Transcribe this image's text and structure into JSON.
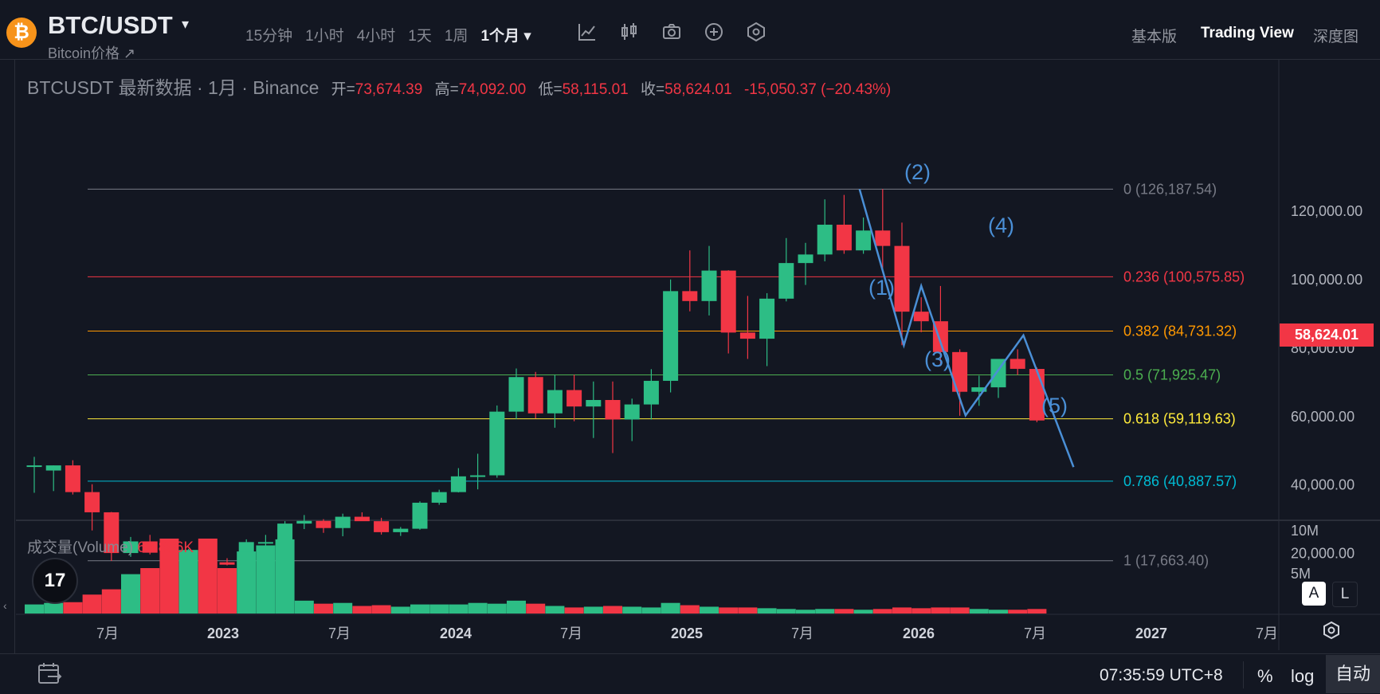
{
  "header": {
    "logo_glyph": "₿",
    "symbol": "BTC/USDT",
    "caret": "▾",
    "subname": "Bitcoin价格 ↗",
    "intervals": [
      "15分钟",
      "1小时",
      "4小时",
      "1天",
      "1周",
      "1个月 ▾"
    ],
    "active_interval_index": 5,
    "tools": [
      "indicator-chart-icon",
      "candles-icon",
      "camera-icon",
      "plus-circle-icon",
      "settings-hex-icon"
    ],
    "view_switch": [
      "基本版",
      "Trading View",
      "深度图"
    ],
    "active_view_index": 1
  },
  "legend": {
    "title": "BTCUSDT 最新数据 · 1月 · Binance",
    "open_k": "开=",
    "open_v": "73,674.39",
    "high_k": "高=",
    "high_v": "74,092.00",
    "low_k": "低=",
    "low_v": "58,115.01",
    "close_k": "收=",
    "close_v": "58,624.01",
    "change": "-15,050.37 (−20.43%)"
  },
  "volume_legend": {
    "label": "成交量(Volume)",
    "value": "63 886K"
  },
  "tv_logo": "17",
  "last_price_tag": "58,624.01",
  "scale_buttons": {
    "a": "A",
    "l": "L"
  },
  "bottom": {
    "clock": "07:35:59 UTC+8",
    "percent": "%",
    "log": "log",
    "auto": "自动",
    "date_range_icon": "calendar-range-icon"
  },
  "colors": {
    "up": "#26a69a",
    "up_fill": "#2dbd85",
    "down": "#f23645",
    "bg": "#131722",
    "wave": "#4a8fd6"
  },
  "chart_data": {
    "type": "candlestick",
    "interval": "1月",
    "price_axis_labels": [
      "120,000.00",
      "100,000.00",
      "80,000.00",
      "60,000.00",
      "40,000.00",
      "20,000.00"
    ],
    "price_axis_values": [
      120000,
      100000,
      80000,
      60000,
      40000,
      20000
    ],
    "volume_axis_labels": [
      "10M",
      "5M"
    ],
    "time_axis_labels": [
      "7月",
      "2023",
      "7月",
      "2024",
      "7月",
      "2025",
      "7月",
      "2026",
      "7月",
      "2027",
      "7月"
    ],
    "candles": [
      {
        "o": 45500,
        "h": 48000,
        "l": 37500,
        "c": 45500,
        "v": 1.2
      },
      {
        "o": 44000,
        "h": 45500,
        "l": 38000,
        "c": 45500,
        "v": 1.4
      },
      {
        "o": 45500,
        "h": 47000,
        "l": 37000,
        "c": 37700,
        "v": 1.5
      },
      {
        "o": 37700,
        "h": 40000,
        "l": 26500,
        "c": 31800,
        "v": 2.5
      },
      {
        "o": 31800,
        "h": 31900,
        "l": 17600,
        "c": 19900,
        "v": 3.2
      },
      {
        "o": 19900,
        "h": 24600,
        "l": 18800,
        "c": 23300,
        "v": 5.2
      },
      {
        "o": 23300,
        "h": 25200,
        "l": 19500,
        "c": 20000,
        "v": 6.0
      },
      {
        "o": 20000,
        "h": 22700,
        "l": 18200,
        "c": 19400,
        "v": 9.9
      },
      {
        "o": 19400,
        "h": 21100,
        "l": 18200,
        "c": 20500,
        "v": 8.4
      },
      {
        "o": 20500,
        "h": 21500,
        "l": 15500,
        "c": 17200,
        "v": 9.9
      },
      {
        "o": 17200,
        "h": 18400,
        "l": 16300,
        "c": 16500,
        "v": 6.0
      },
      {
        "o": 16500,
        "h": 23900,
        "l": 16500,
        "c": 23100,
        "v": 8.2
      },
      {
        "o": 23100,
        "h": 25200,
        "l": 21400,
        "c": 23100,
        "v": 9.0
      },
      {
        "o": 23100,
        "h": 29200,
        "l": 19500,
        "c": 28500,
        "v": 9.8
      },
      {
        "o": 28500,
        "h": 31000,
        "l": 26900,
        "c": 29300,
        "v": 1.7
      },
      {
        "o": 29300,
        "h": 29800,
        "l": 25800,
        "c": 27200,
        "v": 1.3
      },
      {
        "o": 27200,
        "h": 31400,
        "l": 24800,
        "c": 30500,
        "v": 1.4
      },
      {
        "o": 30500,
        "h": 31800,
        "l": 29500,
        "c": 29200,
        "v": 1.0
      },
      {
        "o": 29200,
        "h": 30200,
        "l": 25300,
        "c": 26000,
        "v": 1.1
      },
      {
        "o": 26000,
        "h": 27500,
        "l": 24900,
        "c": 27000,
        "v": 0.9
      },
      {
        "o": 27000,
        "h": 35000,
        "l": 26700,
        "c": 34600,
        "v": 1.2
      },
      {
        "o": 34600,
        "h": 38400,
        "l": 34000,
        "c": 37700,
        "v": 1.2
      },
      {
        "o": 37700,
        "h": 44700,
        "l": 37600,
        "c": 42300,
        "v": 1.2
      },
      {
        "o": 42300,
        "h": 48900,
        "l": 38500,
        "c": 42600,
        "v": 1.4
      },
      {
        "o": 42600,
        "h": 63000,
        "l": 41900,
        "c": 61200,
        "v": 1.3
      },
      {
        "o": 61200,
        "h": 73800,
        "l": 59000,
        "c": 71300,
        "v": 1.7
      },
      {
        "o": 71300,
        "h": 72800,
        "l": 59200,
        "c": 60700,
        "v": 1.3
      },
      {
        "o": 60700,
        "h": 71900,
        "l": 56500,
        "c": 67500,
        "v": 1.0
      },
      {
        "o": 67500,
        "h": 72000,
        "l": 58400,
        "c": 62700,
        "v": 0.8
      },
      {
        "o": 62700,
        "h": 70000,
        "l": 53500,
        "c": 64600,
        "v": 0.9
      },
      {
        "o": 64600,
        "h": 70000,
        "l": 49100,
        "c": 58900,
        "v": 1.0
      },
      {
        "o": 58900,
        "h": 65000,
        "l": 52600,
        "c": 63300,
        "v": 0.9
      },
      {
        "o": 63300,
        "h": 73600,
        "l": 58900,
        "c": 70200,
        "v": 0.8
      },
      {
        "o": 70200,
        "h": 99800,
        "l": 66800,
        "c": 96400,
        "v": 1.4
      },
      {
        "o": 96400,
        "h": 108300,
        "l": 90500,
        "c": 93500,
        "v": 1.1
      },
      {
        "o": 93500,
        "h": 109600,
        "l": 89300,
        "c": 102400,
        "v": 0.9
      },
      {
        "o": 102400,
        "h": 102500,
        "l": 78200,
        "c": 84300,
        "v": 0.8
      },
      {
        "o": 84300,
        "h": 95000,
        "l": 76600,
        "c": 82500,
        "v": 0.8
      },
      {
        "o": 82500,
        "h": 95800,
        "l": 74500,
        "c": 94200,
        "v": 0.7
      },
      {
        "o": 94200,
        "h": 111900,
        "l": 93400,
        "c": 104600,
        "v": 0.6
      },
      {
        "o": 104600,
        "h": 110500,
        "l": 98200,
        "c": 107100,
        "v": 0.5
      },
      {
        "o": 107100,
        "h": 123200,
        "l": 105100,
        "c": 115800,
        "v": 0.6
      },
      {
        "o": 115800,
        "h": 124500,
        "l": 107300,
        "c": 108300,
        "v": 0.6
      },
      {
        "o": 108300,
        "h": 117900,
        "l": 107300,
        "c": 114100,
        "v": 0.5
      },
      {
        "o": 114100,
        "h": 126200,
        "l": 102000,
        "c": 109600,
        "v": 0.6
      },
      {
        "o": 109600,
        "h": 116400,
        "l": 80600,
        "c": 90400,
        "v": 0.8
      },
      {
        "o": 90400,
        "h": 94600,
        "l": 84400,
        "c": 87600,
        "v": 0.7
      },
      {
        "o": 87600,
        "h": 97900,
        "l": 74500,
        "c": 78600,
        "v": 0.8
      },
      {
        "o": 78600,
        "h": 79400,
        "l": 60000,
        "c": 67000,
        "v": 0.8
      },
      {
        "o": 67000,
        "h": 71700,
        "l": 62900,
        "c": 68300,
        "v": 0.6
      },
      {
        "o": 68300,
        "h": 76000,
        "l": 65200,
        "c": 76600,
        "v": 0.5
      },
      {
        "o": 76600,
        "h": 79400,
        "l": 71900,
        "c": 73700,
        "v": 0.5
      },
      {
        "o": 73674.39,
        "h": 74092,
        "l": 58115.01,
        "c": 58624.01,
        "v": 0.6
      }
    ],
    "fibonacci": [
      {
        "label": "0 (126,187.54)",
        "value": 126187.54,
        "color": "#787b86"
      },
      {
        "label": "0.236 (100,575.85)",
        "value": 100575.85,
        "color": "#f23645"
      },
      {
        "label": "0.382 (84,731.32)",
        "value": 84731.32,
        "color": "#ff9800"
      },
      {
        "label": "0.5 (71,925.47)",
        "value": 71925.47,
        "color": "#4caf50"
      },
      {
        "label": "0.618 (59,119.63)",
        "value": 59119.63,
        "color": "#ffeb3b"
      },
      {
        "label": "0.786 (40,887.57)",
        "value": 40887.57,
        "color": "#00bcd4"
      },
      {
        "label": "1 (17,663.40)",
        "value": 17663.4,
        "color": "#787b86"
      }
    ],
    "wave_labels": [
      "(1)",
      "(2)",
      "(3)",
      "(4)",
      "(5)"
    ],
    "wave_points": [
      {
        "bar": 42.8,
        "price": 126200
      },
      {
        "bar": 45.1,
        "price": 80600
      },
      {
        "bar": 46.0,
        "price": 97900
      },
      {
        "bar": 48.3,
        "price": 60100
      },
      {
        "bar": 51.3,
        "price": 83500
      },
      {
        "bar": 53.9,
        "price": 45000
      }
    ]
  }
}
